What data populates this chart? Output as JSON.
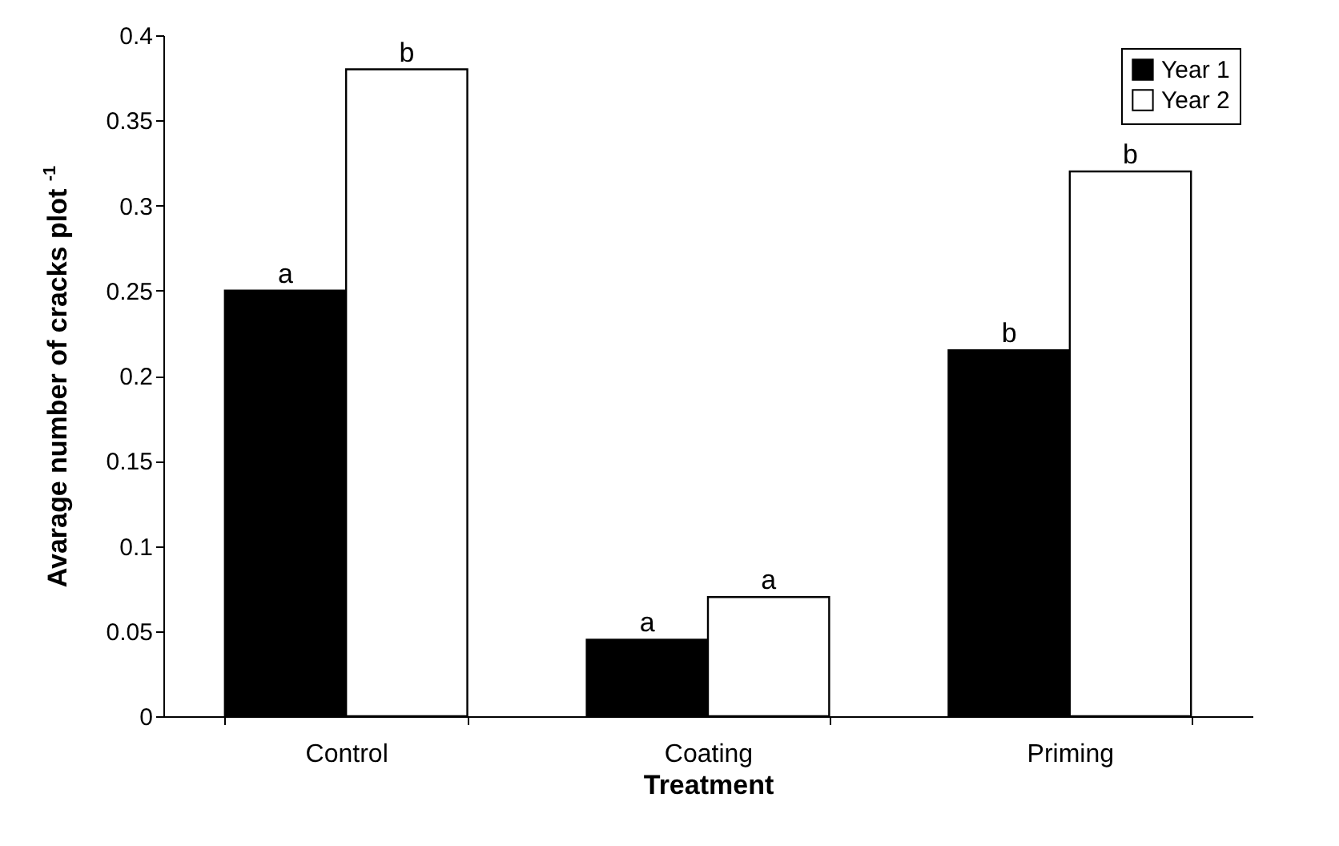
{
  "chart_data": {
    "type": "bar",
    "xlabel": "Treatment",
    "ylabel": "Avarage number of cracks plot $^{-1}$",
    "categories": [
      "Control",
      "Coating",
      "Priming"
    ],
    "series": [
      {
        "name": "Year 1",
        "color": "#000000",
        "values": [
          0.25,
          0.045,
          0.215
        ],
        "value_labels": [
          "a",
          "a",
          "b"
        ]
      },
      {
        "name": "Year 2",
        "color": "#ffffff",
        "values": [
          0.38,
          0.07,
          0.32
        ],
        "value_labels": [
          "b",
          "a",
          "b"
        ]
      }
    ],
    "ylim": [
      0,
      0.4
    ],
    "yticks": [
      0,
      0.05,
      0.1,
      0.15,
      0.2,
      0.25,
      0.3,
      0.35,
      0.4
    ],
    "grid": false,
    "legend": "top right"
  }
}
